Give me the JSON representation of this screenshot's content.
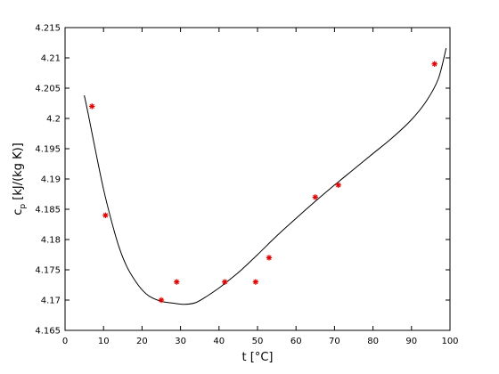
{
  "chart_data": {
    "type": "scatter",
    "xlabel": "t [°C]",
    "ylabel_main": "c",
    "ylabel_sub": "p",
    "ylabel_rest": " [kJ/(kg K)]",
    "xlim": [
      0,
      100
    ],
    "ylim": [
      4.165,
      4.215
    ],
    "xticks": [
      "0",
      "10",
      "20",
      "30",
      "40",
      "50",
      "60",
      "70",
      "80",
      "90",
      "100"
    ],
    "yticks": [
      "4.165",
      "4.17",
      "4.175",
      "4.18",
      "4.185",
      "4.19",
      "4.195",
      "4.2",
      "4.205",
      "4.21",
      "4.215"
    ],
    "grid": false,
    "marker_color": "#e00000",
    "line_color": "#000000",
    "points": [
      {
        "x": 7,
        "y": 4.202
      },
      {
        "x": 10.5,
        "y": 4.184
      },
      {
        "x": 25,
        "y": 4.17
      },
      {
        "x": 29,
        "y": 4.173
      },
      {
        "x": 41.5,
        "y": 4.173
      },
      {
        "x": 49.5,
        "y": 4.173
      },
      {
        "x": 53,
        "y": 4.177
      },
      {
        "x": 65,
        "y": 4.187
      },
      {
        "x": 71,
        "y": 4.189
      },
      {
        "x": 96,
        "y": 4.209
      }
    ],
    "curve": [
      {
        "x": 5,
        "y": 4.2038
      },
      {
        "x": 6,
        "y": 4.2008
      },
      {
        "x": 8,
        "y": 4.1944
      },
      {
        "x": 10,
        "y": 4.1883
      },
      {
        "x": 12,
        "y": 4.1832
      },
      {
        "x": 14,
        "y": 4.1788
      },
      {
        "x": 16,
        "y": 4.1756
      },
      {
        "x": 18,
        "y": 4.1734
      },
      {
        "x": 20,
        "y": 4.1717
      },
      {
        "x": 22,
        "y": 4.1706
      },
      {
        "x": 25,
        "y": 4.1698
      },
      {
        "x": 28,
        "y": 4.1695
      },
      {
        "x": 31,
        "y": 4.1693
      },
      {
        "x": 34,
        "y": 4.1696
      },
      {
        "x": 37,
        "y": 4.1707
      },
      {
        "x": 40,
        "y": 4.172
      },
      {
        "x": 43,
        "y": 4.1735
      },
      {
        "x": 46,
        "y": 4.1751
      },
      {
        "x": 50,
        "y": 4.1775
      },
      {
        "x": 55,
        "y": 4.1806
      },
      {
        "x": 60,
        "y": 4.1835
      },
      {
        "x": 65,
        "y": 4.1863
      },
      {
        "x": 70,
        "y": 4.189
      },
      {
        "x": 75,
        "y": 4.1916
      },
      {
        "x": 80,
        "y": 4.1942
      },
      {
        "x": 85,
        "y": 4.1968
      },
      {
        "x": 90,
        "y": 4.1998
      },
      {
        "x": 94,
        "y": 4.203
      },
      {
        "x": 97,
        "y": 4.2066
      },
      {
        "x": 99,
        "y": 4.2116
      }
    ]
  }
}
